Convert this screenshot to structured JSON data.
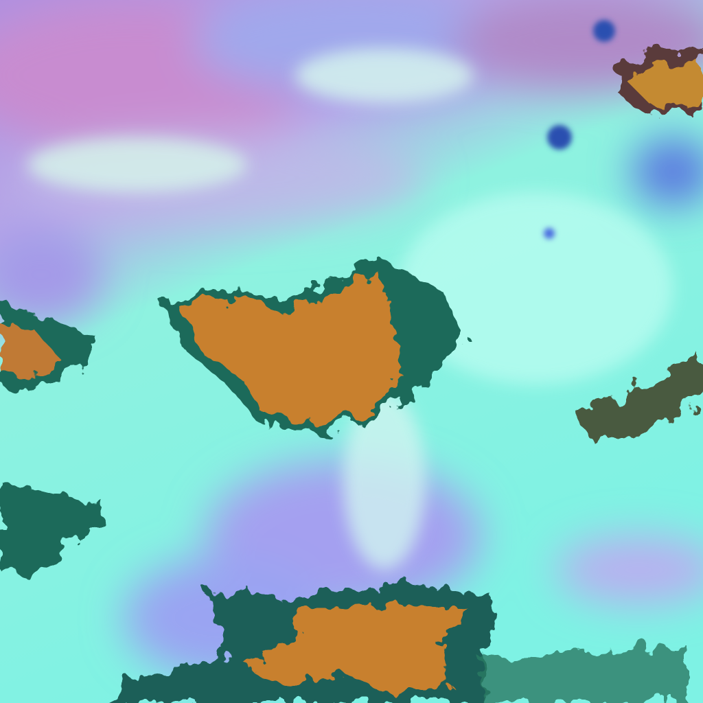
{
  "image": {
    "kind": "false-color satellite cloud imagery",
    "colors": {
      "low_cloud": "#80f5e6",
      "bright_cloud": "#c8fbf0",
      "upper_haze_pink": "#c88cd0",
      "upper_haze_blue": "#8ea6f0",
      "lavender": "#a89ef0",
      "deep_convection": "#c8802e",
      "convection_edge": "#1f6a5a",
      "dark_blue": "#2c4fb0"
    }
  }
}
